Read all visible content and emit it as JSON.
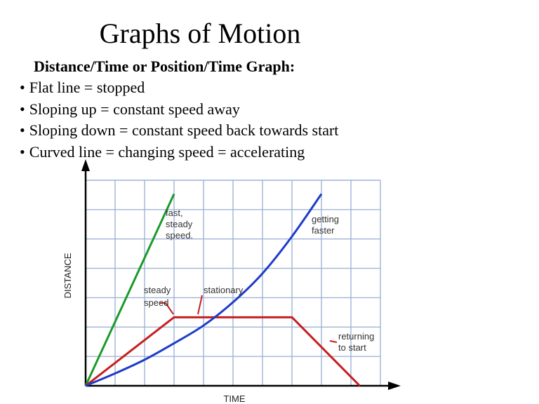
{
  "slide": {
    "title": "Graphs of Motion",
    "subtitle": "Distance/Time or Position/Time Graph:",
    "bullets": [
      "Flat line = stopped",
      "Sloping up = constant speed away",
      "Sloping down = constant speed back towards start",
      "Curved line = changing speed = accelerating"
    ]
  },
  "chart_data": {
    "type": "line",
    "xlabel": "TIME",
    "ylabel": "DISTANCE",
    "xlim": [
      0,
      10
    ],
    "ylim": [
      0,
      7.5
    ],
    "grid": true,
    "series": [
      {
        "key": "fast",
        "color": "#1a9a2a",
        "x": [
          0,
          3
        ],
        "y": [
          0,
          7.0
        ]
      },
      {
        "key": "steady_stationary_returning",
        "color": "#c81e1e",
        "x": [
          0,
          3,
          7,
          9.3
        ],
        "y": [
          0,
          2.5,
          2.5,
          0
        ]
      },
      {
        "key": "accelerating",
        "color": "#1e3cc8",
        "curve": true,
        "x": [
          0,
          1,
          2,
          3,
          4,
          5,
          6,
          7,
          8
        ],
        "y": [
          0,
          0.45,
          0.95,
          1.55,
          2.2,
          3.05,
          4.1,
          5.45,
          7.0
        ]
      }
    ],
    "annotations": [
      {
        "key": "fast",
        "lines": [
          "fast,",
          "steady",
          "speed."
        ]
      },
      {
        "key": "steady",
        "lines": [
          "steady",
          "speed"
        ]
      },
      {
        "key": "stationary",
        "lines": [
          "stationary"
        ]
      },
      {
        "key": "faster",
        "lines": [
          "getting",
          "faster"
        ]
      },
      {
        "key": "returning",
        "lines": [
          "returning",
          "to start"
        ]
      }
    ]
  }
}
